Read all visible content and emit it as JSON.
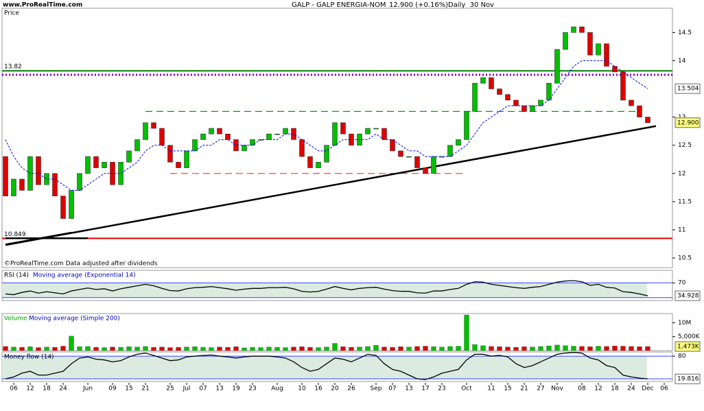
{
  "header": {
    "site": "www.ProRealTime.com",
    "title": "GALP - GALP ENERGIA-NOM",
    "quote": "12.900 (+0.16%)",
    "period": "Daily  30 Nov",
    "footnote": "©ProRealTime.com Data adjusted after dividends"
  },
  "chart_data": [
    {
      "type": "candlestick",
      "title": "Price",
      "categories": [
        null,
        "06",
        null,
        "12",
        null,
        "18",
        null,
        "24",
        null,
        null,
        "Jun",
        null,
        null,
        "09",
        null,
        "15",
        null,
        "21",
        null,
        null,
        "25",
        null,
        "Jul",
        null,
        "07",
        null,
        "13",
        null,
        "19",
        null,
        "23",
        null,
        null,
        "Aug",
        null,
        null,
        "10",
        null,
        "16",
        null,
        "20",
        null,
        "26",
        null,
        null,
        "Sep",
        null,
        "07",
        null,
        "13",
        null,
        "17",
        null,
        "23",
        null,
        null,
        "Oct",
        null,
        null,
        "11",
        null,
        "15",
        null,
        "21",
        null,
        "27",
        null,
        "Nov",
        null,
        null,
        "08",
        null,
        "12",
        null,
        "18",
        null,
        "24",
        null,
        "Dec",
        null,
        "06"
      ],
      "open": [
        12.3,
        11.6,
        11.9,
        11.7,
        12.3,
        11.8,
        12.0,
        11.6,
        11.2,
        11.7,
        12.0,
        12.3,
        12.1,
        12.2,
        11.8,
        12.2,
        12.4,
        12.6,
        12.9,
        12.8,
        12.5,
        12.2,
        12.1,
        12.4,
        12.6,
        12.7,
        12.8,
        12.7,
        12.6,
        12.4,
        12.5,
        12.6,
        12.6,
        12.7,
        12.7,
        12.8,
        12.6,
        12.3,
        12.1,
        12.2,
        12.5,
        12.9,
        12.7,
        12.5,
        12.7,
        12.8,
        12.8,
        12.6,
        12.4,
        12.3,
        12.3,
        12.1,
        12.0,
        12.3,
        12.3,
        12.5,
        12.6,
        13.1,
        13.6,
        13.7,
        13.5,
        13.4,
        13.3,
        13.2,
        13.1,
        13.2,
        13.3,
        13.6,
        14.2,
        14.5,
        14.6,
        14.5,
        14.1,
        14.3,
        13.9,
        13.8,
        13.3,
        13.2,
        13.0,
        null,
        null
      ],
      "close": [
        11.6,
        11.9,
        11.7,
        12.3,
        11.8,
        12.0,
        11.6,
        11.2,
        11.7,
        12.0,
        12.3,
        12.1,
        12.2,
        11.8,
        12.2,
        12.4,
        12.6,
        12.9,
        12.8,
        12.5,
        12.2,
        12.1,
        12.4,
        12.6,
        12.7,
        12.8,
        12.7,
        12.6,
        12.4,
        12.5,
        12.6,
        12.6,
        12.7,
        12.7,
        12.8,
        12.6,
        12.3,
        12.1,
        12.2,
        12.5,
        12.9,
        12.7,
        12.5,
        12.7,
        12.8,
        12.8,
        12.6,
        12.4,
        12.3,
        12.3,
        12.1,
        12.0,
        12.3,
        12.3,
        12.5,
        12.6,
        13.1,
        13.6,
        13.7,
        13.5,
        13.4,
        13.3,
        13.2,
        13.1,
        13.2,
        13.3,
        13.6,
        14.2,
        14.5,
        14.6,
        14.5,
        14.1,
        14.3,
        13.9,
        13.8,
        13.3,
        13.2,
        13.0,
        12.9,
        null,
        null
      ],
      "last": {
        "value": 12.9,
        "label": "12.900"
      },
      "up_color": "#00c000",
      "down_color": "#e00000",
      "series": [
        {
          "name": "Moving average (Exponential 20)",
          "color": "#0000ff",
          "values": [
            12.6,
            12.3,
            12.1,
            12.0,
            12.0,
            11.9,
            11.9,
            11.8,
            11.7,
            11.7,
            11.8,
            11.9,
            12.0,
            12.0,
            12.0,
            12.1,
            12.2,
            12.4,
            12.5,
            12.5,
            12.4,
            12.4,
            12.4,
            12.4,
            12.5,
            12.5,
            12.6,
            12.6,
            12.5,
            12.5,
            12.5,
            12.6,
            12.6,
            12.6,
            12.7,
            12.7,
            12.6,
            12.5,
            12.4,
            12.4,
            12.5,
            12.6,
            12.6,
            12.6,
            12.6,
            12.7,
            12.6,
            12.6,
            12.5,
            12.4,
            12.4,
            12.3,
            12.3,
            12.3,
            12.3,
            12.4,
            12.5,
            12.7,
            12.9,
            13.0,
            13.1,
            13.2,
            13.2,
            13.2,
            13.2,
            13.2,
            13.3,
            13.5,
            13.7,
            13.9,
            14.0,
            14.0,
            14.0,
            14.0,
            13.9,
            13.8,
            13.7,
            13.6,
            13.504,
            null,
            null
          ]
        }
      ],
      "hlines": [
        {
          "value": 13.82,
          "label": "13.82",
          "color": "#008000"
        },
        {
          "value": 10.849,
          "label": "10.849",
          "color": "#e00000"
        },
        {
          "value": 13.75,
          "color": "#8000c0",
          "dash": "2 3"
        }
      ],
      "segments": [
        {
          "x": [
            17,
            77
          ],
          "y": [
            13.1,
            13.1
          ],
          "color": "#00a000",
          "dash": "10 6"
        },
        {
          "x": [
            20,
            56
          ],
          "y": [
            12.0,
            12.0
          ],
          "color": "#ff4040",
          "dash": "10 6"
        },
        {
          "x": [
            0,
            79
          ],
          "y": [
            10.73,
            12.84
          ],
          "color": "#000000"
        },
        {
          "x": [
            0,
            10
          ],
          "y": [
            10.85,
            10.85
          ],
          "color": "#000000"
        },
        {
          "x": [
            0,
            8
          ],
          "y": [
            10.74,
            10.95
          ],
          "color": "#000000"
        }
      ],
      "ylim": [
        10.33,
        14.93
      ],
      "yticks": [
        10.5,
        11,
        11.5,
        12,
        12.5,
        13,
        14,
        14.5
      ]
    },
    {
      "type": "line",
      "title": "RSI (14)",
      "subtitle": "Moving average (Exponential 14)",
      "color": "#000000",
      "values": [
        40,
        38,
        44,
        48,
        42,
        46,
        43,
        40,
        48,
        52,
        56,
        52,
        54,
        48,
        54,
        58,
        62,
        66,
        62,
        55,
        49,
        48,
        54,
        57,
        58,
        60,
        57,
        54,
        50,
        53,
        55,
        55,
        57,
        57,
        58,
        54,
        47,
        45,
        47,
        53,
        60,
        55,
        51,
        55,
        57,
        58,
        53,
        49,
        47,
        47,
        43,
        42,
        48,
        48,
        52,
        55,
        66,
        73,
        72,
        66,
        63,
        60,
        57,
        55,
        58,
        60,
        66,
        72,
        75,
        76,
        73,
        63,
        66,
        58,
        56,
        46,
        44,
        40,
        34.928,
        null,
        null
      ],
      "bands": [
        30,
        70
      ],
      "ylim": [
        22,
        104
      ],
      "yticks": [
        70
      ]
    },
    {
      "type": "bar",
      "title": "Volume",
      "subtitle": "Moving average (Simple 200)",
      "values": [
        1500000,
        1300000,
        1200000,
        1400000,
        1100000,
        1300000,
        1200000,
        1600000,
        5200000,
        1400000,
        1500000,
        1200000,
        1100000,
        1300000,
        1200000,
        1400000,
        1300000,
        1500000,
        1200000,
        1300000,
        1100000,
        1200000,
        1300000,
        1400000,
        1200000,
        1100000,
        1300000,
        1200000,
        1400000,
        1000000,
        1200000,
        1100000,
        1300000,
        1200000,
        1100000,
        1300000,
        1400000,
        1200000,
        1100000,
        1300000,
        2600000,
        1400000,
        1200000,
        1300000,
        1500000,
        1900000,
        1300000,
        1200000,
        1400000,
        1300000,
        1500000,
        1600000,
        1400000,
        1300000,
        1500000,
        1600000,
        12800000,
        2200000,
        1800000,
        1500000,
        1400000,
        1300000,
        1200000,
        1400000,
        1300000,
        1500000,
        1700000,
        2000000,
        1800000,
        1600000,
        1500000,
        1400000,
        1600000,
        1500000,
        1700000,
        1600000,
        1500000,
        1400000,
        1473000,
        null,
        null
      ],
      "last": {
        "value": 1473000,
        "label": "1,473K"
      },
      "ylim": [
        0,
        13300000
      ],
      "yticks": [
        {
          "value": 5000000,
          "label": "5,000K"
        },
        {
          "value": 10000000,
          "label": "10M"
        }
      ]
    },
    {
      "type": "line",
      "title": "Money flow (14)",
      "color": "#000000",
      "values": [
        20,
        25,
        35,
        40,
        30,
        30,
        35,
        40,
        60,
        75,
        78,
        72,
        70,
        65,
        68,
        78,
        85,
        88,
        82,
        75,
        68,
        70,
        78,
        80,
        82,
        83,
        80,
        78,
        75,
        78,
        80,
        80,
        80,
        78,
        75,
        65,
        50,
        40,
        45,
        60,
        75,
        72,
        65,
        75,
        85,
        82,
        60,
        45,
        40,
        30,
        20,
        18,
        25,
        35,
        40,
        45,
        70,
        85,
        85,
        80,
        82,
        78,
        60,
        50,
        55,
        65,
        75,
        85,
        88,
        90,
        88,
        75,
        70,
        55,
        50,
        30,
        25,
        22,
        19.816,
        null,
        null
      ],
      "bands": [
        20,
        80
      ],
      "ylim": [
        13,
        91
      ],
      "yticks": [
        80
      ]
    }
  ]
}
